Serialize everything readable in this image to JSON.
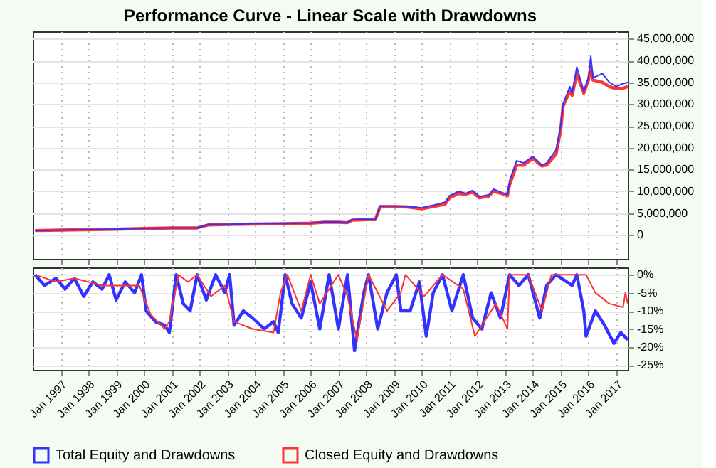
{
  "chart_data": [
    {
      "type": "line",
      "title": "Performance Curve - Linear Scale with Drawdowns",
      "xlim": [
        "1996-01",
        "2017-06"
      ],
      "ylim": [
        -5500000,
        46700000
      ],
      "tick_labels": "y",
      "grid": true,
      "legend": false,
      "xticks": [
        {
          "value": "1997-01",
          "label": null
        },
        {
          "value": "1998-01",
          "label": null
        },
        {
          "value": "1999-01",
          "label": null
        },
        {
          "value": "2000-01",
          "label": null
        },
        {
          "value": "2001-01",
          "label": null
        },
        {
          "value": "2002-01",
          "label": null
        },
        {
          "value": "2003-01",
          "label": null
        },
        {
          "value": "2004-01",
          "label": null
        },
        {
          "value": "2005-01",
          "label": null
        },
        {
          "value": "2006-01",
          "label": null
        },
        {
          "value": "2007-01",
          "label": null
        },
        {
          "value": "2008-01",
          "label": null
        },
        {
          "value": "2009-01",
          "label": null
        },
        {
          "value": "2010-01",
          "label": null
        },
        {
          "value": "2011-01",
          "label": null
        },
        {
          "value": "2012-01",
          "label": null
        },
        {
          "value": "2013-01",
          "label": null
        },
        {
          "value": "2014-01",
          "label": null
        },
        {
          "value": "2015-01",
          "label": null
        },
        {
          "value": "2016-01",
          "label": null
        },
        {
          "value": "2017-01",
          "label": null
        }
      ],
      "yticks": [
        0,
        {
          "value": 5000000,
          "label": "5,000,000"
        },
        {
          "value": 10000000,
          "label": "10,000,000"
        },
        {
          "value": 15000000,
          "label": "15,000,000"
        },
        {
          "value": 20000000,
          "label": "20,000,000"
        },
        {
          "value": 25000000,
          "label": "25,000,000"
        },
        {
          "value": 30000000,
          "label": "30,000,000"
        },
        {
          "value": 35000000,
          "label": "35,000,000"
        },
        {
          "value": 40000000,
          "label": "40,000,000"
        },
        {
          "value": 45000000,
          "label": "45,000,000"
        }
      ],
      "series": [
        {
          "color": "#ff3333",
          "x": [
            "1996-02",
            "1997-01",
            "1999-01",
            "2000-01",
            "2001-01",
            "2001-12",
            "2002-05",
            "2003-01",
            "2004-01",
            "2005-01",
            "2006-01",
            "2006-07",
            "2007-01",
            "2007-05",
            "2007-07",
            "2008-01",
            "2008-05",
            "2008-07",
            "2009-01",
            "2009-07",
            "2010-01",
            "2010-06",
            "2010-11",
            "2011-01",
            "2011-05",
            "2011-08",
            "2011-11",
            "2012-02",
            "2012-06",
            "2012-08",
            "2012-12",
            "2013-02",
            "2013-03",
            "2013-06",
            "2013-09",
            "2014-01",
            "2014-05",
            "2014-07",
            "2014-11",
            "2015-01",
            "2015-02",
            "2015-05",
            "2015-06",
            "2015-08",
            "2015-11",
            "2016-01",
            "2016-02",
            "2016-03",
            "2016-07",
            "2016-10",
            "2017-01",
            "2017-03",
            "2017-06"
          ],
          "values": [
            1000000,
            1100000,
            1300000,
            1500000,
            1600000,
            1600000,
            2300000,
            2400000,
            2500000,
            2600000,
            2700000,
            2900000,
            2900000,
            2800000,
            3400000,
            3500000,
            3500000,
            6400000,
            6500000,
            6400000,
            6000000,
            6500000,
            7000000,
            8500000,
            9500000,
            9300000,
            9800000,
            8500000,
            8900000,
            10000000,
            9400000,
            9000000,
            11500000,
            16000000,
            16000000,
            17500000,
            15800000,
            16000000,
            18500000,
            24000000,
            29500000,
            33000000,
            32000000,
            37000000,
            32500000,
            35500000,
            38500000,
            35500000,
            35000000,
            34000000,
            33500000,
            33500000,
            34000000
          ]
        },
        {
          "color": "#3333ff",
          "x": [
            "1996-02",
            "1997-01",
            "1999-01",
            "2000-01",
            "2001-01",
            "2001-12",
            "2002-05",
            "2003-01",
            "2004-01",
            "2005-01",
            "2006-01",
            "2006-07",
            "2007-01",
            "2007-05",
            "2007-07",
            "2008-01",
            "2008-05",
            "2008-07",
            "2009-01",
            "2009-07",
            "2010-01",
            "2010-06",
            "2010-11",
            "2011-01",
            "2011-05",
            "2011-08",
            "2011-11",
            "2012-02",
            "2012-06",
            "2012-08",
            "2012-12",
            "2013-02",
            "2013-03",
            "2013-06",
            "2013-09",
            "2014-01",
            "2014-05",
            "2014-07",
            "2014-11",
            "2015-01",
            "2015-02",
            "2015-05",
            "2015-06",
            "2015-08",
            "2015-11",
            "2016-01",
            "2016-02",
            "2016-03",
            "2016-07",
            "2016-10",
            "2017-01",
            "2017-03",
            "2017-06"
          ],
          "values": [
            1000000,
            1100000,
            1300000,
            1500000,
            1600000,
            1600000,
            2400000,
            2400000,
            2600000,
            2600000,
            2700000,
            3000000,
            3000000,
            2800000,
            3500000,
            3600000,
            3500000,
            6700000,
            6600000,
            6500000,
            6200000,
            6800000,
            7500000,
            9000000,
            10000000,
            9500000,
            10200000,
            8800000,
            9200000,
            10500000,
            9600000,
            9300000,
            12500000,
            17000000,
            16500000,
            18000000,
            16000000,
            16500000,
            19500000,
            25000000,
            30000000,
            34000000,
            32500000,
            38500000,
            33000000,
            36000000,
            41000000,
            36000000,
            37000000,
            35000000,
            34000000,
            34500000,
            35000000
          ]
        }
      ]
    },
    {
      "type": "line",
      "xlim": [
        "1996-01",
        "2017-06"
      ],
      "ylim": [
        -26.3,
        2
      ],
      "grid": true,
      "legend": "bottom",
      "xticks": [
        {
          "value": "1997-01",
          "label": "Jan 1997"
        },
        {
          "value": "1998-01",
          "label": "Jan 1998"
        },
        {
          "value": "1999-01",
          "label": "Jan 1999"
        },
        {
          "value": "2000-01",
          "label": "Jan 2000"
        },
        {
          "value": "2001-01",
          "label": "Jan 2001"
        },
        {
          "value": "2002-01",
          "label": "Jan 2002"
        },
        {
          "value": "2003-01",
          "label": "Jan 2003"
        },
        {
          "value": "2004-01",
          "label": "Jan 2004"
        },
        {
          "value": "2005-01",
          "label": "Jan 2005"
        },
        {
          "value": "2006-01",
          "label": "Jan 2006"
        },
        {
          "value": "2007-01",
          "label": "Jan 2007"
        },
        {
          "value": "2008-01",
          "label": "Jan 2008"
        },
        {
          "value": "2009-01",
          "label": "Jan 2009"
        },
        {
          "value": "2010-01",
          "label": "Jan 2010"
        },
        {
          "value": "2011-01",
          "label": "Jan 2011"
        },
        {
          "value": "2012-01",
          "label": "Jan 2012"
        },
        {
          "value": "2013-01",
          "label": "Jan 2013"
        },
        {
          "value": "2014-01",
          "label": "Jan 2014"
        },
        {
          "value": "2015-01",
          "label": "Jan 2015"
        },
        {
          "value": "2016-01",
          "label": "Jan 2016"
        },
        {
          "value": "2017-01",
          "label": "Jan 2017"
        }
      ],
      "yticks": [
        {
          "value": 0,
          "label": "0%"
        },
        {
          "value": -5,
          "label": "-5%"
        },
        {
          "value": -10,
          "label": "-10%"
        },
        {
          "value": -15,
          "label": "-15%"
        },
        {
          "value": -20,
          "label": "-20%"
        },
        {
          "value": -25,
          "label": "-25%"
        }
      ],
      "series": [
        {
          "name": "Total Equity and Drawdowns",
          "color": "#3333ff",
          "x": [
            "1996-02",
            "1996-06",
            "1996-11",
            "1997-03",
            "1997-07",
            "1997-11",
            "1998-03",
            "1998-07",
            "1998-10",
            "1999-01",
            "1999-05",
            "1999-09",
            "1999-12",
            "2000-02",
            "2000-06",
            "2000-10",
            "2000-12",
            "2001-03",
            "2001-06",
            "2001-09",
            "2001-12",
            "2002-04",
            "2002-08",
            "2002-12",
            "2003-02",
            "2003-04",
            "2003-08",
            "2003-12",
            "2004-05",
            "2004-09",
            "2004-11",
            "2005-02",
            "2005-05",
            "2005-09",
            "2006-01",
            "2006-05",
            "2006-09",
            "2007-01",
            "2007-05",
            "2007-08",
            "2007-12",
            "2008-02",
            "2008-06",
            "2008-10",
            "2009-02",
            "2009-04",
            "2009-08",
            "2009-12",
            "2010-03",
            "2010-06",
            "2010-10",
            "2011-02",
            "2011-07",
            "2011-11",
            "2012-03",
            "2012-07",
            "2012-11",
            "2013-03",
            "2013-07",
            "2013-11",
            "2014-04",
            "2014-07",
            "2014-11",
            "2015-06",
            "2015-08",
            "2015-11",
            "2015-12",
            "2016-04",
            "2016-08",
            "2016-12",
            "2017-03",
            "2017-06"
          ],
          "values": [
            0,
            -3,
            -1,
            -4,
            -1,
            -6,
            -2,
            -4,
            0,
            -7,
            -2,
            -5,
            0,
            -10,
            -13,
            -14,
            -16,
            0,
            -8,
            -10,
            0,
            -7,
            0,
            -5,
            0,
            -14,
            -10,
            -12,
            -15,
            -13,
            -16,
            0,
            -8,
            -12,
            -2,
            -15,
            0,
            -15,
            0,
            -21,
            -5,
            0,
            -15,
            -5,
            0,
            -10,
            -10,
            -2,
            -17,
            -5,
            0,
            -10,
            0,
            -12,
            -15,
            -5,
            -12,
            0,
            -3,
            0,
            -12,
            -3,
            0,
            -3,
            0,
            -10,
            -17,
            -10,
            -14,
            -19,
            -16,
            -18
          ]
        },
        {
          "name": "Closed Equity and Drawdowns",
          "color": "#ff3333",
          "x": [
            "1996-02",
            "1996-11",
            "1997-07",
            "1998-07",
            "1999-11",
            "2000-04",
            "2000-10",
            "2000-12",
            "2001-04",
            "2001-08",
            "2001-12",
            "2002-06",
            "2002-12",
            "2003-04",
            "2003-12",
            "2004-09",
            "2004-12",
            "2005-03",
            "2005-09",
            "2006-01",
            "2006-05",
            "2007-01",
            "2007-05",
            "2007-09",
            "2008-02",
            "2008-10",
            "2009-04",
            "2009-06",
            "2010-02",
            "2010-10",
            "2011-07",
            "2011-12",
            "2012-05",
            "2012-09",
            "2013-02",
            "2013-03",
            "2013-11",
            "2014-05",
            "2014-09",
            "2015-12",
            "2016-04",
            "2016-10",
            "2017-04",
            "2017-05",
            "2017-06"
          ],
          "values": [
            0,
            -2,
            -1,
            -3,
            -3,
            -11,
            -15,
            -13,
            0,
            -2,
            0,
            -6,
            -3,
            -13,
            -15,
            -16,
            -5,
            0,
            -10,
            0,
            -8,
            0,
            -6,
            -18,
            0,
            -10,
            -5,
            0,
            -6,
            0,
            -4,
            -17,
            -12,
            -8,
            -15,
            0,
            0,
            -10,
            0,
            0,
            -5,
            -8,
            -9,
            -5,
            -8
          ]
        }
      ]
    }
  ]
}
